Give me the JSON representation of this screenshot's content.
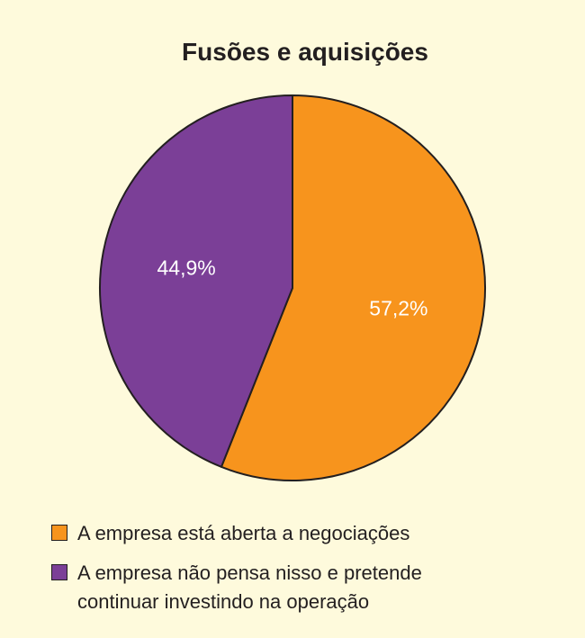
{
  "chart_data": {
    "type": "pie",
    "title": "Fusões e aquisições",
    "slices": [
      {
        "label": "A empresa está aberta a negociações",
        "value": 57.2,
        "value_label": "57,2%",
        "color": "#f7941d"
      },
      {
        "label": "A empresa não pensa nisso e pretende continuar investindo na operação",
        "value": 44.9,
        "value_label": "44,9%",
        "color": "#7b3f97"
      }
    ],
    "legend_position": "bottom-left",
    "start_angle_deg": 0,
    "direction": "clockwise"
  },
  "colors": {
    "background": "#fefadc",
    "outline": "#231f20",
    "data_label_text": "#ffffff"
  }
}
